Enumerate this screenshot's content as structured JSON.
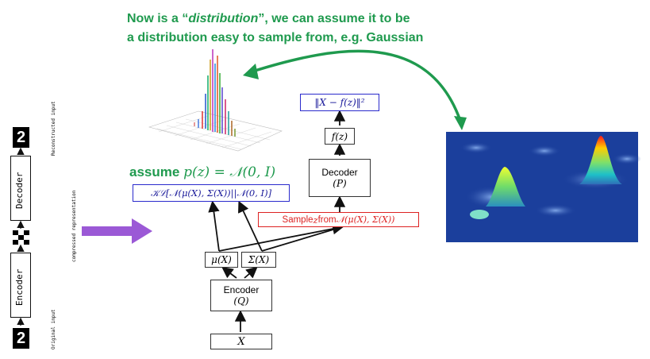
{
  "headline": {
    "line1_pre": "Now is a “",
    "line1_em": "distribution",
    "line1_post": "”, we can assume it to be",
    "line2": "a distribution easy to sample from, e.g. Gaussian"
  },
  "left_ae": {
    "decoder_label": "Decoder",
    "encoder_label": "Encoder",
    "reconstructed_label": "Reconstructed input",
    "compressed_label": "compressed representation",
    "original_label": "Original input",
    "digit": "2"
  },
  "vae": {
    "assume_word": "assume",
    "assume_math": "p(z) = 𝒩(0, I)",
    "kl_pre": "𝒦ℒ[𝒩(μ(X), Σ(X))",
    "kl_post": "𝒩(0, I)]",
    "sample_pre": "Sample ",
    "sample_z": "z",
    "sample_mid": " from ",
    "sample_math": "𝒩(μ(X), Σ(X))",
    "recon_loss": "‖X − f(z)‖²",
    "fz": "f(z)",
    "decoder_label": "Decoder",
    "decoder_sub": "(P)",
    "mu": "μ(X)",
    "sigma": "Σ(X)",
    "encoder_label": "Encoder",
    "encoder_sub": "(Q)",
    "input": "X"
  },
  "colors": {
    "green": "#1f9a4e",
    "blue_box": "#2a2acc",
    "red_text": "#dd2222",
    "purple_arrow": "#9b59d6"
  }
}
